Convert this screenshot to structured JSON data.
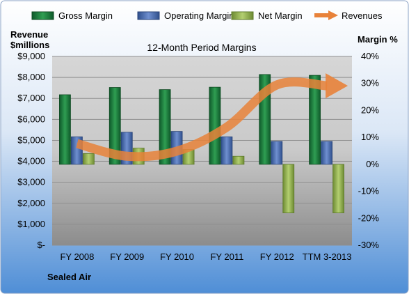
{
  "chart_data": {
    "type": "bar",
    "title": "12-Month Period Margins",
    "left_axis_title_line1": "Revenue",
    "left_axis_title_line2": "$millions",
    "right_axis_title": "Margin %",
    "company": "Sealed Air",
    "categories": [
      "FY 2008",
      "FY 2009",
      "FY 2010",
      "FY 2011",
      "FY 2012",
      "TTM 3-2013"
    ],
    "left_ticks": [
      "$9,000",
      "$8,000",
      "$7,000",
      "$6,000",
      "$5,000",
      "$4,000",
      "$3,000",
      "$2,000",
      "$1,000",
      "$-"
    ],
    "right_ticks": [
      "40%",
      "30%",
      "20%",
      "10%",
      "0%",
      "-10%",
      "-20%",
      "-30%"
    ],
    "ylim_left": [
      0,
      9000
    ],
    "ylim_right": [
      -30,
      40
    ],
    "grid": true,
    "legend_position": "top",
    "series": [
      {
        "name": "Gross Margin",
        "axis": "right",
        "color": "#1e7a3e",
        "values": [
          25.8,
          28.5,
          27.7,
          28.6,
          33.3,
          33.0
        ]
      },
      {
        "name": "Operating Margin",
        "axis": "right",
        "color": "#4a6fb5",
        "values": [
          10.2,
          11.9,
          12.2,
          10.2,
          8.5,
          8.5
        ]
      },
      {
        "name": "Net Margin",
        "axis": "right",
        "color": "#8fb04c",
        "values": [
          4.0,
          6.0,
          5.5,
          3.0,
          -18.0,
          -18.0
        ]
      },
      {
        "name": "Revenues",
        "axis": "left",
        "type": "line",
        "color": "#e8823a",
        "values": [
          4843,
          4243,
          4490,
          5641,
          7648,
          7600
        ]
      }
    ]
  }
}
